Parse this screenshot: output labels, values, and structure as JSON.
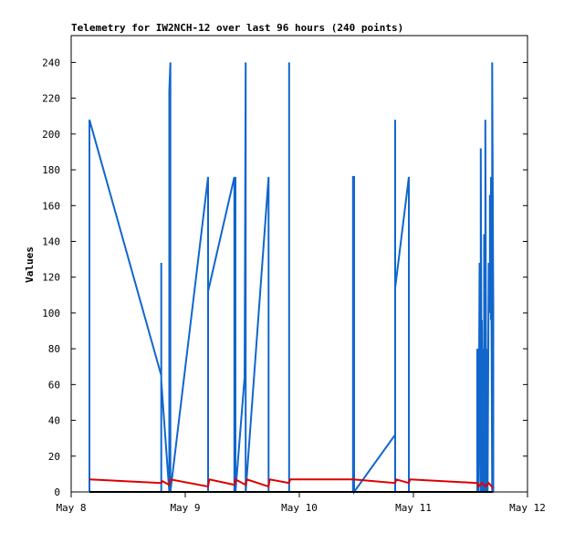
{
  "chart_data": {
    "type": "line",
    "title": "Telemetry for IW2NCH-12 over last 96 hours (240 points)",
    "xlabel": "",
    "ylabel": "Values",
    "xlim": [
      "May 8",
      "May 12"
    ],
    "ylim": [
      0,
      255
    ],
    "grid": false,
    "legend": "none",
    "x_ticks": [
      "May 8",
      "May 9",
      "May 10",
      "May 11",
      "May 12"
    ],
    "y_ticks": [
      0,
      20,
      40,
      60,
      80,
      100,
      120,
      140,
      160,
      180,
      200,
      220,
      240
    ],
    "series": [
      {
        "color": "#1166cc",
        "points": [
          [
            8.16,
            0
          ],
          [
            8.16,
            208
          ],
          [
            8.79,
            65
          ],
          [
            8.79,
            128
          ],
          [
            8.79,
            0
          ],
          [
            8.79,
            62
          ],
          [
            8.86,
            0
          ],
          [
            8.86,
            224
          ],
          [
            8.87,
            240
          ],
          [
            8.87,
            0
          ],
          [
            9.2,
            176
          ],
          [
            9.2,
            0
          ],
          [
            9.2,
            112
          ],
          [
            9.43,
            176
          ],
          [
            9.43,
            0
          ],
          [
            9.44,
            176
          ],
          [
            9.44,
            0
          ],
          [
            9.52,
            64
          ],
          [
            9.53,
            240
          ],
          [
            9.53,
            0
          ],
          [
            9.73,
            176
          ],
          [
            9.73,
            0
          ],
          [
            9.91,
            0
          ],
          [
            9.91,
            240
          ],
          [
            9.91,
            0
          ],
          [
            10.47,
            0
          ],
          [
            10.47,
            176
          ],
          [
            10.48,
            176
          ],
          [
            10.48,
            0
          ],
          [
            10.84,
            32
          ],
          [
            10.84,
            208
          ],
          [
            10.84,
            0
          ],
          [
            10.84,
            114
          ],
          [
            10.96,
            176
          ],
          [
            10.96,
            0
          ],
          [
            11.56,
            0
          ],
          [
            11.56,
            80
          ],
          [
            11.57,
            0
          ],
          [
            11.58,
            128
          ],
          [
            11.58,
            60
          ],
          [
            11.59,
            0
          ],
          [
            11.59,
            192
          ],
          [
            11.6,
            0
          ],
          [
            11.6,
            96
          ],
          [
            11.61,
            0
          ],
          [
            11.61,
            80
          ],
          [
            11.62,
            0
          ],
          [
            11.62,
            144
          ],
          [
            11.63,
            0
          ],
          [
            11.63,
            208
          ],
          [
            11.64,
            0
          ],
          [
            11.64,
            80
          ],
          [
            11.65,
            0
          ],
          [
            11.66,
            128
          ],
          [
            11.67,
            100
          ],
          [
            11.67,
            166
          ],
          [
            11.68,
            96
          ],
          [
            11.68,
            176
          ],
          [
            11.69,
            0
          ],
          [
            11.69,
            240
          ],
          [
            11.7,
            104
          ],
          [
            11.7,
            0
          ]
        ]
      },
      {
        "color": "#dd0000",
        "points": [
          [
            8.16,
            7
          ],
          [
            8.79,
            5
          ],
          [
            8.8,
            6
          ],
          [
            8.86,
            4
          ],
          [
            8.87,
            7
          ],
          [
            9.2,
            3
          ],
          [
            9.21,
            7
          ],
          [
            9.43,
            4
          ],
          [
            9.44,
            7
          ],
          [
            9.53,
            4
          ],
          [
            9.54,
            7
          ],
          [
            9.73,
            3
          ],
          [
            9.74,
            7
          ],
          [
            9.91,
            5
          ],
          [
            9.92,
            7
          ],
          [
            10.47,
            7
          ],
          [
            10.84,
            5
          ],
          [
            10.85,
            7
          ],
          [
            10.96,
            5
          ],
          [
            10.97,
            7
          ],
          [
            11.56,
            5
          ],
          [
            11.57,
            3
          ],
          [
            11.6,
            5
          ],
          [
            11.63,
            3
          ],
          [
            11.66,
            5
          ],
          [
            11.7,
            2
          ]
        ]
      },
      {
        "color": "#000000",
        "points": [
          [
            8.16,
            0
          ],
          [
            11.7,
            0
          ]
        ]
      }
    ]
  }
}
